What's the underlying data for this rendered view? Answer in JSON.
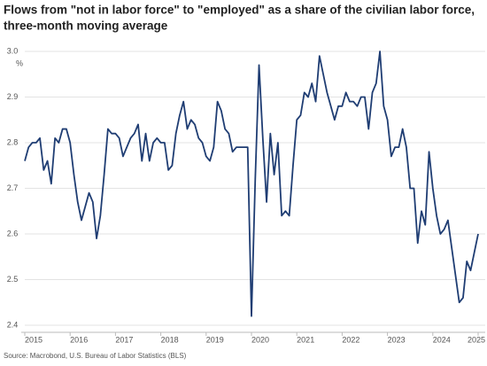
{
  "chart_data": {
    "type": "line",
    "title": "Flows from \"not in labor force\" to \"employed\" as a share of the civilian labor force,",
    "subtitle": "three-month moving average",
    "y_unit": "%",
    "source": "Source: Macrobond, U.S. Bureau of Labor Statistics (BLS)",
    "categories": [
      "2015",
      null,
      null,
      null,
      null,
      null,
      null,
      null,
      null,
      null,
      null,
      null,
      "2016",
      null,
      null,
      null,
      null,
      null,
      null,
      null,
      null,
      null,
      null,
      null,
      "2017",
      null,
      null,
      null,
      null,
      null,
      null,
      null,
      null,
      null,
      null,
      null,
      "2018",
      null,
      null,
      null,
      null,
      null,
      null,
      null,
      null,
      null,
      null,
      null,
      "2019",
      null,
      null,
      null,
      null,
      null,
      null,
      null,
      null,
      null,
      null,
      null,
      "2020",
      null,
      null,
      null,
      null,
      null,
      null,
      null,
      null,
      null,
      null,
      null,
      "2021",
      null,
      null,
      null,
      null,
      null,
      null,
      null,
      null,
      null,
      null,
      null,
      "2022",
      null,
      null,
      null,
      null,
      null,
      null,
      null,
      null,
      null,
      null,
      null,
      "2023",
      null,
      null,
      null,
      null,
      null,
      null,
      null,
      null,
      null,
      null,
      null,
      "2024",
      null,
      null,
      null,
      null,
      null,
      null,
      null,
      null,
      null,
      null,
      null,
      "2025"
    ],
    "values": [
      2.76,
      2.79,
      2.8,
      2.8,
      2.81,
      2.74,
      2.76,
      2.71,
      2.81,
      2.8,
      2.83,
      2.83,
      2.8,
      2.73,
      2.67,
      2.63,
      2.66,
      2.69,
      2.67,
      2.59,
      2.64,
      2.73,
      2.83,
      2.82,
      2.82,
      2.81,
      2.77,
      2.79,
      2.81,
      2.82,
      2.84,
      2.76,
      2.82,
      2.76,
      2.8,
      2.81,
      2.8,
      2.8,
      2.74,
      2.75,
      2.82,
      2.86,
      2.89,
      2.83,
      2.85,
      2.84,
      2.81,
      2.8,
      2.77,
      2.76,
      2.79,
      2.89,
      2.87,
      2.83,
      2.82,
      2.78,
      2.79,
      2.79,
      2.79,
      2.79,
      2.42,
      2.72,
      2.97,
      2.81,
      2.67,
      2.82,
      2.73,
      2.8,
      2.64,
      2.65,
      2.64,
      2.75,
      2.85,
      2.86,
      2.91,
      2.9,
      2.93,
      2.89,
      2.99,
      2.95,
      2.91,
      2.88,
      2.85,
      2.88,
      2.88,
      2.91,
      2.89,
      2.89,
      2.88,
      2.9,
      2.9,
      2.83,
      2.91,
      2.93,
      3.0,
      2.88,
      2.85,
      2.77,
      2.79,
      2.79,
      2.83,
      2.79,
      2.7,
      2.7,
      2.58,
      2.65,
      2.62,
      2.78,
      2.7,
      2.64,
      2.6,
      2.61,
      2.63,
      2.57,
      2.51,
      2.45,
      2.46,
      2.54,
      2.52,
      2.56,
      2.6
    ],
    "color": "#1f3d73",
    "ylim": [
      2.4,
      3.0
    ],
    "yticks": [
      2.4,
      2.5,
      2.6,
      2.7,
      2.8,
      2.9,
      {
        "value": 3,
        "label": "3.0"
      }
    ],
    "grid": true
  }
}
